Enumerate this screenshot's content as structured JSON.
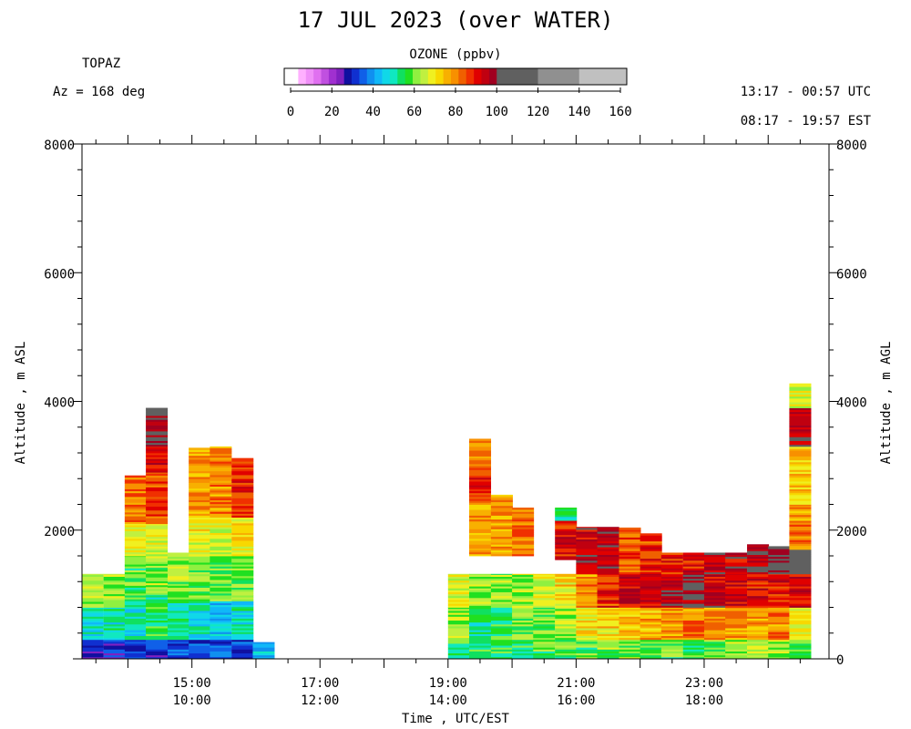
{
  "header": {
    "title": "17 JUL 2023 (over WATER)",
    "site": "TOPAZ",
    "azimuth": "Az = 168 deg",
    "time_utc": "13:17 - 00:57 UTC",
    "time_est": "08:17 - 19:57 EST"
  },
  "colorbar": {
    "title": "OZONE (ppbv)",
    "tick_labels": [
      "0",
      "20",
      "40",
      "60",
      "80",
      "100",
      "120",
      "140",
      "160"
    ],
    "colors": [
      "#ffffff",
      "#ffb0ff",
      "#f090f8",
      "#e070f0",
      "#c050e0",
      "#a030d0",
      "#8020c0",
      "#1010a0",
      "#1030d0",
      "#1060e8",
      "#1090f0",
      "#10b8f8",
      "#10d8e8",
      "#10e8c0",
      "#10e060",
      "#20e020",
      "#90f040",
      "#c0f040",
      "#f0f020",
      "#f8d800",
      "#f8b000",
      "#f89000",
      "#f06000",
      "#f03000",
      "#e00000",
      "#c00010",
      "#a00020",
      "#606060",
      "#909090",
      "#c0c0c0"
    ],
    "range": [
      0,
      160
    ]
  },
  "chart_data": {
    "type": "heatmap",
    "variable": "OZONE (ppbv)",
    "xlabel": "Time , UTC/EST",
    "ylabel_left": "Altitude , m ASL",
    "ylabel_right": "Altitude , m AGL",
    "x_tick_labels_utc": [
      "15:00",
      "17:00",
      "19:00",
      "21:00",
      "23:00"
    ],
    "x_tick_labels_est": [
      "10:00",
      "12:00",
      "14:00",
      "16:00",
      "18:00"
    ],
    "x_tick_hours_utc": [
      15,
      17,
      19,
      21,
      23
    ],
    "xlim_hours_utc": [
      13.283,
      24.95
    ],
    "y_tick_labels_left": [
      "2000",
      "4000",
      "6000",
      "8000"
    ],
    "y_tick_labels_right": [
      "0",
      "2000",
      "4000",
      "6000",
      "8000"
    ],
    "y_tick_values": [
      2000,
      4000,
      6000,
      8000
    ],
    "ylim": [
      0,
      8000
    ],
    "profiles": [
      {
        "t": 13.28,
        "top": 1320,
        "layers": [
          [
            0,
            300,
            30
          ],
          [
            300,
            800,
            48
          ],
          [
            800,
            1320,
            62
          ]
        ]
      },
      {
        "t": 13.62,
        "top": 1320,
        "layers": [
          [
            0,
            300,
            30
          ],
          [
            300,
            800,
            50
          ],
          [
            800,
            1320,
            62
          ]
        ]
      },
      {
        "t": 13.95,
        "top": 2850,
        "layers": [
          [
            0,
            300,
            30
          ],
          [
            300,
            900,
            48
          ],
          [
            900,
            1600,
            58
          ],
          [
            1600,
            2100,
            70
          ],
          [
            2100,
            2850,
            82
          ]
        ]
      },
      {
        "t": 14.28,
        "top": 3900,
        "layers": [
          [
            0,
            300,
            32
          ],
          [
            300,
            1000,
            55
          ],
          [
            1000,
            1600,
            62
          ],
          [
            1600,
            2100,
            68
          ],
          [
            2100,
            2900,
            85
          ],
          [
            2900,
            3300,
            92
          ],
          [
            3300,
            3800,
            98
          ],
          [
            3800,
            3900,
            110
          ]
        ]
      },
      {
        "t": 14.62,
        "top": 1650,
        "layers": [
          [
            0,
            300,
            34
          ],
          [
            300,
            900,
            52
          ],
          [
            900,
            1650,
            62
          ]
        ]
      },
      {
        "t": 14.95,
        "top": 3280,
        "layers": [
          [
            0,
            300,
            32
          ],
          [
            300,
            900,
            48
          ],
          [
            900,
            1600,
            60
          ],
          [
            1600,
            2200,
            68
          ],
          [
            2200,
            3280,
            78
          ]
        ]
      },
      {
        "t": 15.28,
        "top": 3300,
        "layers": [
          [
            0,
            300,
            32
          ],
          [
            300,
            900,
            46
          ],
          [
            900,
            1600,
            60
          ],
          [
            1600,
            2200,
            68
          ],
          [
            2200,
            3300,
            80
          ]
        ]
      },
      {
        "t": 15.62,
        "top": 3120,
        "layers": [
          [
            0,
            300,
            32
          ],
          [
            300,
            900,
            50
          ],
          [
            900,
            1600,
            60
          ],
          [
            1600,
            2200,
            70
          ],
          [
            2200,
            3120,
            88
          ]
        ]
      },
      {
        "t": 15.95,
        "top": 260,
        "layers": [
          [
            0,
            260,
            44
          ]
        ]
      },
      {
        "t": 19.0,
        "top": 1320,
        "layers": [
          [
            0,
            300,
            55
          ],
          [
            300,
            800,
            62
          ],
          [
            800,
            1320,
            66
          ]
        ]
      },
      {
        "t": 19.33,
        "top": 3420,
        "layers": [
          [
            0,
            300,
            55
          ],
          [
            300,
            800,
            52
          ],
          [
            800,
            1320,
            62
          ],
          [
            1600,
            2400,
            78
          ],
          [
            2400,
            3000,
            88
          ],
          [
            3000,
            3420,
            80
          ]
        ]
      },
      {
        "t": 19.67,
        "top": 2550,
        "layers": [
          [
            0,
            300,
            55
          ],
          [
            300,
            800,
            56
          ],
          [
            800,
            1320,
            62
          ],
          [
            1600,
            2550,
            78
          ]
        ]
      },
      {
        "t": 20.0,
        "top": 2350,
        "layers": [
          [
            0,
            300,
            55
          ],
          [
            300,
            800,
            60
          ],
          [
            800,
            1320,
            64
          ],
          [
            1600,
            2350,
            82
          ]
        ]
      },
      {
        "t": 20.33,
        "top": 1320,
        "layers": [
          [
            0,
            300,
            58
          ],
          [
            300,
            800,
            60
          ],
          [
            800,
            1320,
            66
          ]
        ]
      },
      {
        "t": 20.67,
        "top": 2350,
        "layers": [
          [
            0,
            300,
            58
          ],
          [
            300,
            800,
            64
          ],
          [
            800,
            1320,
            72
          ],
          [
            1540,
            2150,
            90
          ],
          [
            2150,
            2350,
            50
          ]
        ]
      },
      {
        "t": 21.0,
        "top": 2050,
        "layers": [
          [
            0,
            300,
            58
          ],
          [
            300,
            800,
            70
          ],
          [
            800,
            1320,
            80
          ],
          [
            1320,
            2050,
            95
          ]
        ]
      },
      {
        "t": 21.33,
        "top": 2050,
        "layers": [
          [
            0,
            300,
            60
          ],
          [
            300,
            800,
            72
          ],
          [
            800,
            1320,
            88
          ],
          [
            1320,
            2050,
            96
          ]
        ]
      },
      {
        "t": 21.67,
        "top": 2040,
        "layers": [
          [
            0,
            300,
            60
          ],
          [
            300,
            800,
            74
          ],
          [
            800,
            1320,
            92
          ],
          [
            1320,
            2040,
            85
          ]
        ]
      },
      {
        "t": 22.0,
        "top": 1950,
        "layers": [
          [
            0,
            300,
            60
          ],
          [
            300,
            800,
            76
          ],
          [
            800,
            1320,
            94
          ],
          [
            1320,
            1950,
            88
          ]
        ]
      },
      {
        "t": 22.33,
        "top": 1650,
        "layers": [
          [
            0,
            300,
            58
          ],
          [
            300,
            800,
            78
          ],
          [
            800,
            1320,
            96
          ],
          [
            1320,
            1650,
            90
          ]
        ]
      },
      {
        "t": 22.67,
        "top": 1650,
        "layers": [
          [
            0,
            300,
            56
          ],
          [
            300,
            800,
            80
          ],
          [
            800,
            1320,
            98
          ],
          [
            1320,
            1650,
            90
          ]
        ]
      },
      {
        "t": 23.0,
        "top": 1650,
        "layers": [
          [
            0,
            300,
            58
          ],
          [
            300,
            800,
            80
          ],
          [
            800,
            1320,
            94
          ],
          [
            1320,
            1650,
            96
          ]
        ]
      },
      {
        "t": 23.33,
        "top": 1650,
        "layers": [
          [
            0,
            300,
            60
          ],
          [
            300,
            800,
            78
          ],
          [
            800,
            1320,
            92
          ],
          [
            1320,
            1650,
            94
          ]
        ]
      },
      {
        "t": 23.67,
        "top": 1780,
        "layers": [
          [
            0,
            300,
            62
          ],
          [
            300,
            800,
            78
          ],
          [
            800,
            1320,
            90
          ],
          [
            1320,
            1780,
            96
          ]
        ]
      },
      {
        "t": 24.0,
        "top": 1750,
        "layers": [
          [
            0,
            300,
            62
          ],
          [
            300,
            800,
            80
          ],
          [
            800,
            1320,
            90
          ],
          [
            1320,
            1750,
            105
          ]
        ]
      },
      {
        "t": 24.33,
        "top": 4280,
        "layers": [
          [
            0,
            300,
            56
          ],
          [
            300,
            800,
            70
          ],
          [
            800,
            1320,
            90
          ],
          [
            1320,
            1700,
            110
          ],
          [
            1700,
            2400,
            80
          ],
          [
            2400,
            3300,
            74
          ],
          [
            3300,
            3900,
            96
          ],
          [
            3900,
            4280,
            66
          ]
        ]
      }
    ],
    "grid": false,
    "legend": "colorbar top-center"
  }
}
